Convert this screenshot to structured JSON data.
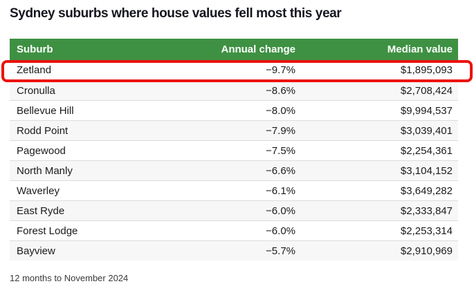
{
  "chart_data": {
    "type": "table",
    "title": "Sydney suburbs where house values fell most this year",
    "note": "12 months to November 2024",
    "columns": [
      "Suburb",
      "Annual change",
      "Median value"
    ],
    "rows": [
      {
        "suburb": "Zetland",
        "annual_change": "−9.7%",
        "annual_change_pct": -9.7,
        "median_value": "$1,895,093",
        "median_value_num": 1895093,
        "highlighted": true
      },
      {
        "suburb": "Cronulla",
        "annual_change": "−8.6%",
        "annual_change_pct": -8.6,
        "median_value": "$2,708,424",
        "median_value_num": 2708424,
        "highlighted": false
      },
      {
        "suburb": "Bellevue Hill",
        "annual_change": "−8.0%",
        "annual_change_pct": -8.0,
        "median_value": "$9,994,537",
        "median_value_num": 9994537,
        "highlighted": false
      },
      {
        "suburb": "Rodd Point",
        "annual_change": "−7.9%",
        "annual_change_pct": -7.9,
        "median_value": "$3,039,401",
        "median_value_num": 3039401,
        "highlighted": false
      },
      {
        "suburb": "Pagewood",
        "annual_change": "−7.5%",
        "annual_change_pct": -7.5,
        "median_value": "$2,254,361",
        "median_value_num": 2254361,
        "highlighted": false
      },
      {
        "suburb": "North Manly",
        "annual_change": "−6.6%",
        "annual_change_pct": -6.6,
        "median_value": "$3,104,152",
        "median_value_num": 3104152,
        "highlighted": false
      },
      {
        "suburb": "Waverley",
        "annual_change": "−6.1%",
        "annual_change_pct": -6.1,
        "median_value": "$3,649,282",
        "median_value_num": 3649282,
        "highlighted": false
      },
      {
        "suburb": "East Ryde",
        "annual_change": "−6.0%",
        "annual_change_pct": -6.0,
        "median_value": "$2,333,847",
        "median_value_num": 2333847,
        "highlighted": false
      },
      {
        "suburb": "Forest Lodge",
        "annual_change": "−6.0%",
        "annual_change_pct": -6.0,
        "median_value": "$2,253,314",
        "median_value_num": 2253314,
        "highlighted": false
      },
      {
        "suburb": "Bayview",
        "annual_change": "−5.7%",
        "annual_change_pct": -5.7,
        "median_value": "$2,910,969",
        "median_value_num": 2910969,
        "highlighted": false
      }
    ],
    "highlighted_row": "Zetland",
    "layout": {
      "legend": "none",
      "grid": "row-dividers",
      "zebra_striping": true
    }
  },
  "colors": {
    "header_green": "#3e9142",
    "highlight_red": "#ec130b",
    "row_stripe": "#f7f7f7",
    "row_divider": "#dcdcdc",
    "title_text": "#15161f",
    "cell_text": "#1a1a1a",
    "note_text": "#3a3a3a"
  }
}
